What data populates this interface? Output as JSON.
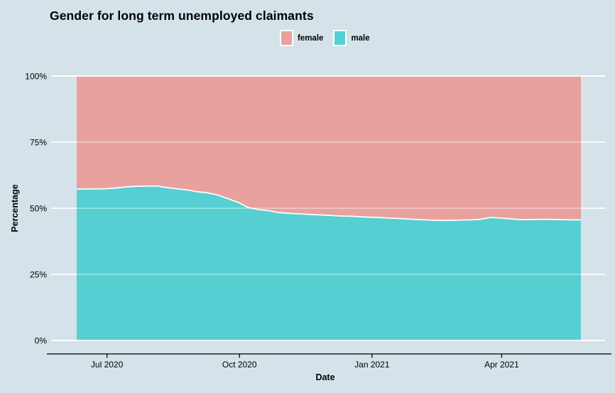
{
  "header": {
    "title": "Gender for long term unemployed claimants"
  },
  "legend": {
    "position": "top-center",
    "items": [
      {
        "label": "female",
        "color": "#E9A19D"
      },
      {
        "label": "male",
        "color": "#56CFD3"
      }
    ]
  },
  "colors": {
    "background": "#D5E2E9",
    "female": "#E9A19D",
    "male": "#56CFD3",
    "gridline": "#FFFFFF",
    "axis_line": "#000000",
    "text": "#000000"
  },
  "chart_data": {
    "type": "area",
    "stacked": true,
    "stack_total": 100,
    "title": "Gender for long term unemployed claimants",
    "xlabel": "Date",
    "ylabel": "Percentage",
    "legend_position": "top",
    "grid": "horizontal white gridlines at 0/25/50/75/100",
    "ylim": [
      0,
      100
    ],
    "y_tick_values": [
      0,
      25,
      50,
      75,
      100
    ],
    "y_tick_labels": [
      "0%",
      "25%",
      "50%",
      "75%",
      "100%"
    ],
    "x_tick_dates": [
      "2020-07-01",
      "2020-10-01",
      "2021-01-01",
      "2021-04-01"
    ],
    "x_tick_labels": [
      "Jul 2020",
      "Oct 2020",
      "Jan 2021",
      "Apr 2021"
    ],
    "x_range": [
      "2020-06-10",
      "2021-05-26"
    ],
    "x": [
      "2020-06-10",
      "2020-06-17",
      "2020-06-24",
      "2020-07-01",
      "2020-07-08",
      "2020-07-15",
      "2020-07-22",
      "2020-07-29",
      "2020-08-05",
      "2020-08-12",
      "2020-08-19",
      "2020-08-26",
      "2020-09-02",
      "2020-09-09",
      "2020-09-16",
      "2020-09-23",
      "2020-09-30",
      "2020-10-07",
      "2020-10-14",
      "2020-10-21",
      "2020-10-28",
      "2020-11-04",
      "2020-11-11",
      "2020-11-18",
      "2020-11-25",
      "2020-12-02",
      "2020-12-09",
      "2020-12-16",
      "2020-12-23",
      "2020-12-30",
      "2021-01-06",
      "2021-01-13",
      "2021-01-20",
      "2021-01-27",
      "2021-02-03",
      "2021-02-10",
      "2021-02-17",
      "2021-02-24",
      "2021-03-03",
      "2021-03-10",
      "2021-03-17",
      "2021-03-24",
      "2021-03-31",
      "2021-04-07",
      "2021-04-14",
      "2021-04-21",
      "2021-04-28",
      "2021-05-05",
      "2021-05-12",
      "2021-05-19",
      "2021-05-26"
    ],
    "series": [
      {
        "name": "male",
        "color": "#56CFD3",
        "values": [
          57.2,
          57.3,
          57.3,
          57.4,
          57.7,
          58.1,
          58.3,
          58.4,
          58.4,
          57.8,
          57.3,
          56.9,
          56.2,
          55.8,
          55.0,
          53.6,
          52.2,
          50.3,
          49.5,
          49.1,
          48.4,
          48.1,
          47.9,
          47.7,
          47.5,
          47.3,
          47.1,
          47.0,
          46.8,
          46.6,
          46.5,
          46.3,
          46.1,
          45.9,
          45.7,
          45.5,
          45.4,
          45.4,
          45.5,
          45.6,
          45.8,
          46.5,
          46.3,
          46.0,
          45.7,
          45.7,
          45.8,
          45.8,
          45.7,
          45.6,
          45.6
        ]
      },
      {
        "name": "female",
        "color": "#E9A19D",
        "values": [
          42.8,
          42.7,
          42.7,
          42.6,
          42.3,
          41.9,
          41.7,
          41.6,
          41.6,
          42.2,
          42.7,
          43.1,
          43.8,
          44.2,
          45.0,
          46.4,
          47.8,
          49.7,
          50.5,
          50.9,
          51.6,
          51.9,
          52.1,
          52.3,
          52.5,
          52.7,
          52.9,
          53.0,
          53.2,
          53.4,
          53.5,
          53.7,
          53.9,
          54.1,
          54.3,
          54.5,
          54.6,
          54.6,
          54.5,
          54.4,
          54.2,
          53.5,
          53.7,
          54.0,
          54.3,
          54.3,
          54.2,
          54.2,
          54.3,
          54.4,
          54.4
        ]
      }
    ]
  }
}
